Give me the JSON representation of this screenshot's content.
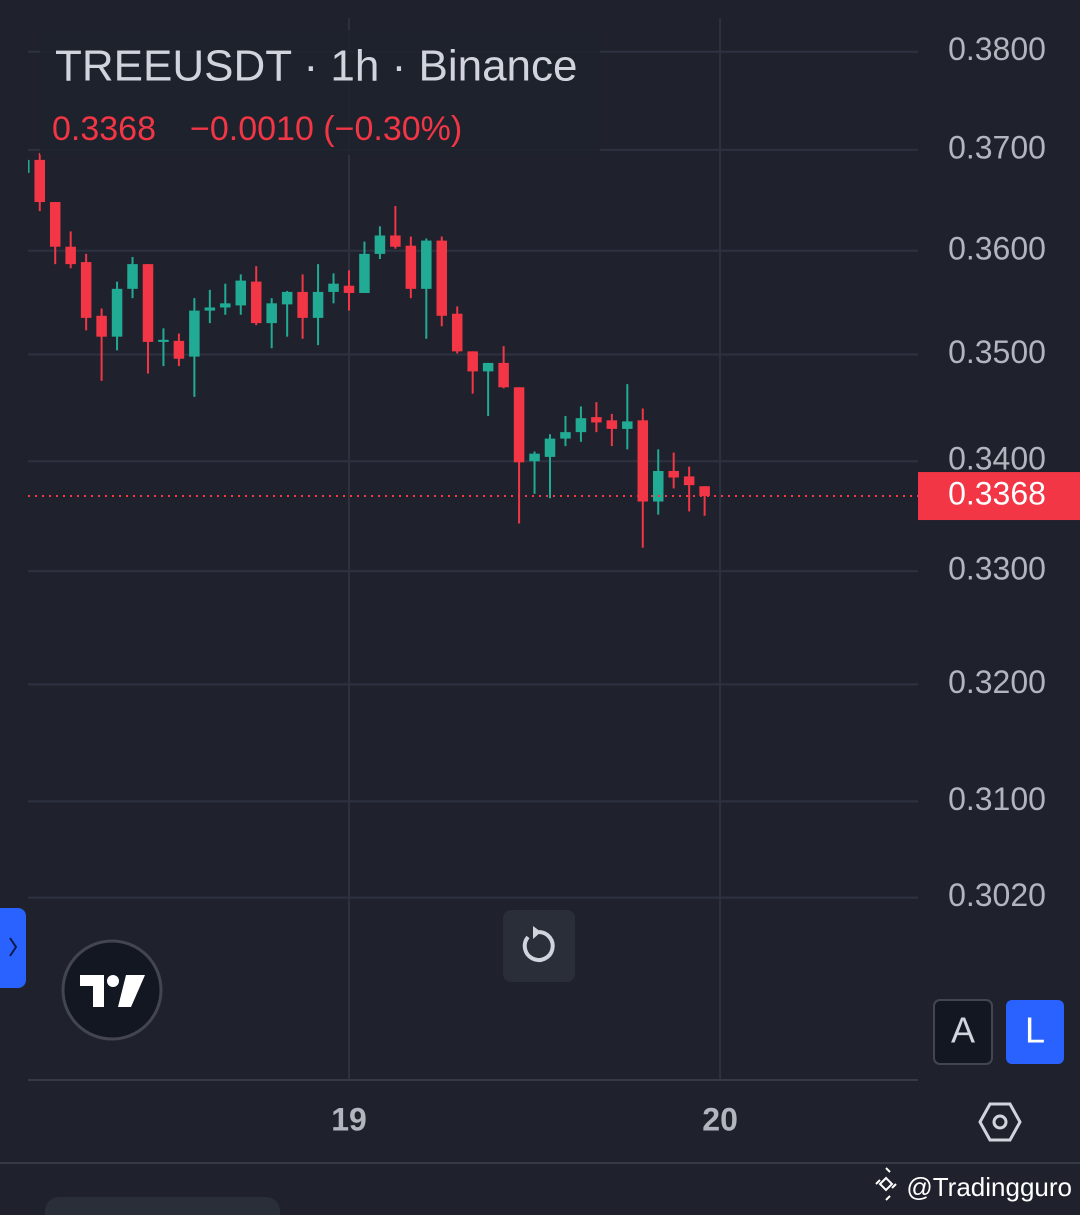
{
  "chart_data": {
    "type": "candlestick",
    "title": "TREEUSDT · 1h · Binance",
    "last_price": 0.3368,
    "last_price_label": "0.3368",
    "change_text": "−0.0010 (−0.30%)",
    "up_color": "#22ab94",
    "down_color": "#f23645",
    "log_scale": true,
    "grid": true,
    "xlim": [
      3.24,
      60.8
    ],
    "xticks": [
      {
        "value": 24,
        "label": "19"
      },
      {
        "value": 48,
        "label": "20"
      }
    ],
    "ylim": [
      0.2874,
      0.3835
    ],
    "yticks": [
      {
        "value": 0.302,
        "label": "0.3020"
      },
      {
        "value": 0.31,
        "label": "0.3100"
      },
      {
        "value": 0.32,
        "label": "0.3200"
      },
      {
        "value": 0.33,
        "label": "0.3300"
      },
      {
        "value": 0.34,
        "label": "0.3400"
      },
      {
        "value": 0.35,
        "label": "0.3500"
      },
      {
        "value": 0.36,
        "label": "0.3600"
      },
      {
        "value": 0.37,
        "label": "0.3700"
      },
      {
        "value": 0.38,
        "label": "0.3800"
      }
    ],
    "x": [
      3,
      4,
      5,
      6,
      7,
      8,
      9,
      10,
      11,
      12,
      13,
      14,
      15,
      16,
      17,
      18,
      19,
      20,
      21,
      22,
      23,
      24,
      25,
      26,
      27,
      28,
      29,
      30,
      31,
      32,
      33,
      34,
      35,
      36,
      37,
      38,
      39,
      40,
      41,
      42,
      43,
      44,
      45,
      46,
      47
    ],
    "open": [
      0.3677,
      0.369,
      0.3648,
      0.3604,
      0.3589,
      0.3537,
      0.3517,
      0.3563,
      0.3587,
      0.3512,
      0.3513,
      0.3498,
      0.3542,
      0.3545,
      0.3547,
      0.357,
      0.353,
      0.3548,
      0.356,
      0.3535,
      0.356,
      0.3566,
      0.3559,
      0.3597,
      0.3615,
      0.3605,
      0.3563,
      0.361,
      0.3539,
      0.3503,
      0.3484,
      0.3492,
      0.3469,
      0.34,
      0.3404,
      0.3421,
      0.3427,
      0.3441,
      0.3438,
      0.343,
      0.3438,
      0.3363,
      0.3391,
      0.3386,
      0.3377
    ],
    "high": [
      0.3695,
      0.3697,
      0.3648,
      0.3619,
      0.3597,
      0.3544,
      0.357,
      0.3594,
      0.3587,
      0.3525,
      0.352,
      0.3554,
      0.3562,
      0.3568,
      0.3577,
      0.3585,
      0.3554,
      0.3561,
      0.3577,
      0.3587,
      0.3578,
      0.3581,
      0.3609,
      0.3624,
      0.3644,
      0.3614,
      0.3612,
      0.3614,
      0.3546,
      0.3503,
      0.3492,
      0.3508,
      0.3469,
      0.3409,
      0.3425,
      0.3442,
      0.3451,
      0.3455,
      0.3444,
      0.3472,
      0.3449,
      0.3411,
      0.3408,
      0.3395,
      0.3377
    ],
    "low": [
      0.3675,
      0.3639,
      0.3587,
      0.3583,
      0.3523,
      0.3475,
      0.3504,
      0.3554,
      0.3482,
      0.3489,
      0.3489,
      0.346,
      0.353,
      0.3538,
      0.3538,
      0.3528,
      0.3506,
      0.3517,
      0.3515,
      0.3509,
      0.3549,
      0.3542,
      0.3559,
      0.3592,
      0.3602,
      0.3554,
      0.3515,
      0.3527,
      0.3501,
      0.3463,
      0.3442,
      0.3468,
      0.3343,
      0.337,
      0.3366,
      0.3414,
      0.3418,
      0.3427,
      0.3414,
      0.3411,
      0.3321,
      0.3351,
      0.3375,
      0.3354,
      0.335
    ],
    "close": [
      0.369,
      0.3648,
      0.3604,
      0.3587,
      0.3535,
      0.3517,
      0.3563,
      0.3587,
      0.3512,
      0.3514,
      0.3496,
      0.3542,
      0.3545,
      0.3549,
      0.3571,
      0.353,
      0.3549,
      0.356,
      0.3535,
      0.356,
      0.3568,
      0.3559,
      0.3597,
      0.3615,
      0.3604,
      0.3563,
      0.361,
      0.3537,
      0.3503,
      0.3484,
      0.3492,
      0.3469,
      0.3399,
      0.3407,
      0.3421,
      0.3427,
      0.344,
      0.3436,
      0.343,
      0.3437,
      0.3363,
      0.3391,
      0.3385,
      0.3378,
      0.3368
    ]
  },
  "buttons": [
    "A",
    "L"
  ],
  "watermark": "@Tradingguro"
}
